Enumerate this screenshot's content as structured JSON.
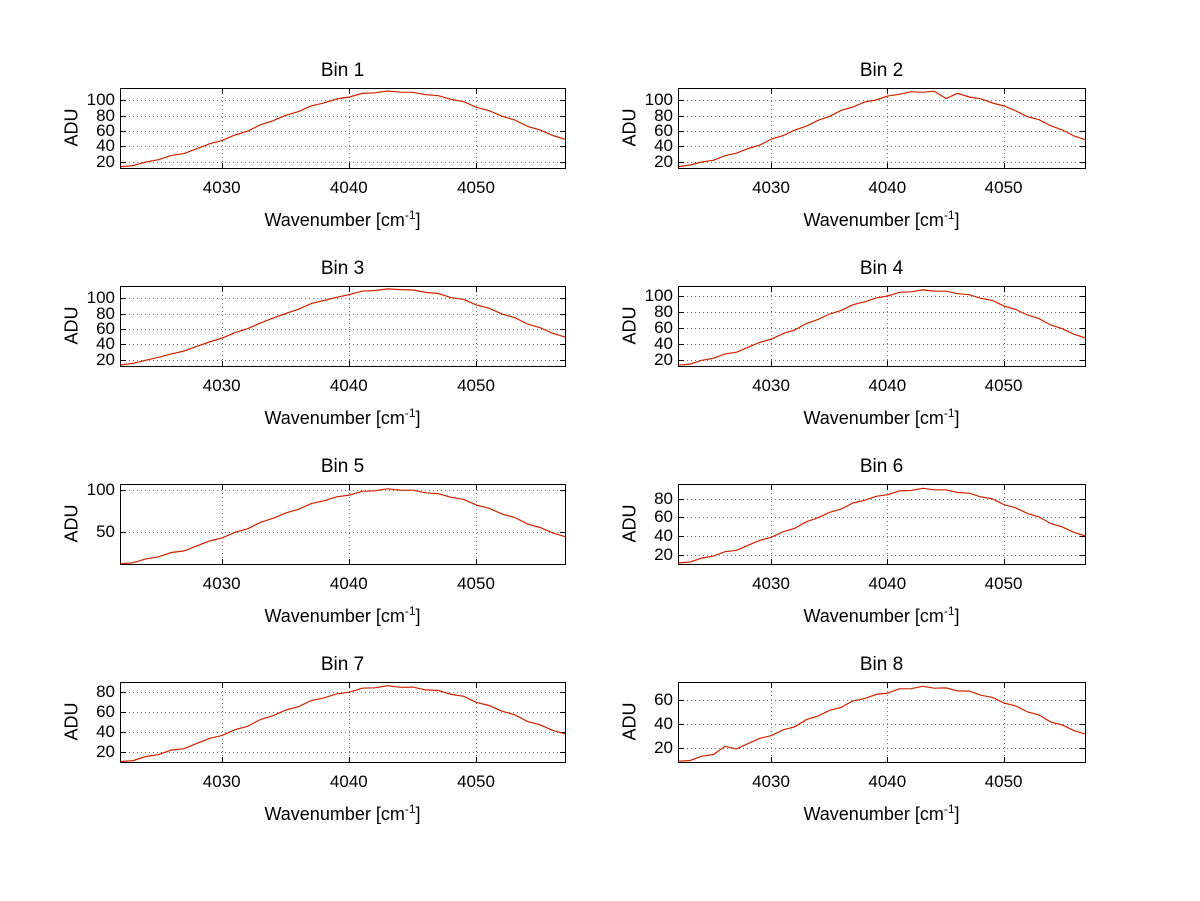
{
  "labels": {
    "ylabel": "ADU",
    "xlabel_main": "Wavenumber [cm",
    "xlabel_sup": "-1",
    "xlabel_close": "]"
  },
  "colors": {
    "line": "#cc2200",
    "grid": "#000000",
    "axis": "#000000",
    "background": "#ffffff"
  },
  "chart_data": [
    {
      "type": "line",
      "title": "Bin 1",
      "xlabel": "Wavenumber [cm^-1]",
      "ylabel": "ADU",
      "x_start": 4022,
      "x_step": 1,
      "xlim": [
        4022,
        4057
      ],
      "ylim": [
        12,
        116
      ],
      "xticks": [
        4030,
        4040,
        4050
      ],
      "xtick_labels": [
        "4030",
        "4040",
        "4050"
      ],
      "yticks": [
        20,
        40,
        60,
        80,
        100
      ],
      "ytick_labels": [
        "20",
        "40",
        "60",
        "80",
        "100"
      ],
      "grid": true,
      "values": [
        14.2,
        15.8,
        20.6,
        23.4,
        29.0,
        31.4,
        37.8,
        44.1,
        48.5,
        55.6,
        60.5,
        68.8,
        74.2,
        81.2,
        86.0,
        93.4,
        97.3,
        102.4,
        104.9,
        109.6,
        110.4,
        112.8,
        111.2,
        111.1,
        107.9,
        106.6,
        101.8,
        98.9,
        91.6,
        87.2,
        80.0,
        75.2,
        66.9,
        62.0,
        54.9,
        49.8
      ]
    },
    {
      "type": "line",
      "title": "Bin 2",
      "xlabel": "Wavenumber [cm^-1]",
      "ylabel": "ADU",
      "x_start": 4022,
      "x_step": 1,
      "xlim": [
        4022,
        4057
      ],
      "ylim": [
        12,
        116
      ],
      "xticks": [
        4030,
        4040,
        4050
      ],
      "xtick_labels": [
        "4030",
        "4040",
        "4050"
      ],
      "yticks": [
        20,
        40,
        60,
        80,
        100
      ],
      "ytick_labels": [
        "20",
        "40",
        "60",
        "80",
        "100"
      ],
      "grid": true,
      "values": [
        14.5,
        16.5,
        20.4,
        22.6,
        28.7,
        32.0,
        38.0,
        42.4,
        50.3,
        54.8,
        62.1,
        67.0,
        74.6,
        79.9,
        87.7,
        91.9,
        98.4,
        101.0,
        106.3,
        108.5,
        111.9,
        111.1,
        112.5,
        103.0,
        109.7,
        105.0,
        102.6,
        97.1,
        93.3,
        87.0,
        79.4,
        75.5,
        67.7,
        62.2,
        54.2,
        49.5
      ]
    },
    {
      "type": "line",
      "title": "Bin 3",
      "xlabel": "Wavenumber [cm^-1]",
      "ylabel": "ADU",
      "x_start": 4022,
      "x_step": 1,
      "xlim": [
        4022,
        4057
      ],
      "ylim": [
        12,
        116
      ],
      "xticks": [
        4030,
        4040,
        4050
      ],
      "xtick_labels": [
        "4030",
        "4040",
        "4050"
      ],
      "yticks": [
        20,
        40,
        60,
        80,
        100
      ],
      "ytick_labels": [
        "20",
        "40",
        "60",
        "80",
        "100"
      ],
      "grid": true,
      "values": [
        14.0,
        16.2,
        20.2,
        23.9,
        28.4,
        32.1,
        38.2,
        43.8,
        49.0,
        55.9,
        61.2,
        68.4,
        74.9,
        80.9,
        86.5,
        93.8,
        97.8,
        102.0,
        105.5,
        109.9,
        110.8,
        112.9,
        112.0,
        111.5,
        108.3,
        106.9,
        101.5,
        99.2,
        91.9,
        87.6,
        80.4,
        75.6,
        67.3,
        62.4,
        55.2,
        50.1
      ]
    },
    {
      "type": "line",
      "title": "Bin 4",
      "xlabel": "Wavenumber [cm^-1]",
      "ylabel": "ADU",
      "x_start": 4022,
      "x_step": 1,
      "xlim": [
        4022,
        4057
      ],
      "ylim": [
        12,
        112
      ],
      "xticks": [
        4030,
        4040,
        4050
      ],
      "xtick_labels": [
        "4030",
        "4040",
        "4050"
      ],
      "yticks": [
        20,
        40,
        60,
        80,
        100
      ],
      "ytick_labels": [
        "20",
        "40",
        "60",
        "80",
        "100"
      ],
      "grid": true,
      "values": [
        13.6,
        15.0,
        19.7,
        22.3,
        27.7,
        29.9,
        36.1,
        42.2,
        46.3,
        53.1,
        57.7,
        65.8,
        70.9,
        77.6,
        82.1,
        89.3,
        92.9,
        97.8,
        100.1,
        104.7,
        105.4,
        107.8,
        106.2,
        106.1,
        103.0,
        101.8,
        97.2,
        94.5,
        87.5,
        83.3,
        76.4,
        71.9,
        63.9,
        59.2,
        52.4,
        47.6
      ]
    },
    {
      "type": "line",
      "title": "Bin 5",
      "xlabel": "Wavenumber [cm^-1]",
      "ylabel": "ADU",
      "x_start": 4022,
      "x_step": 1,
      "xlim": [
        4022,
        4057
      ],
      "ylim": [
        12,
        107
      ],
      "xticks": [
        4030,
        4040,
        4050
      ],
      "xtick_labels": [
        "4030",
        "4040",
        "4050"
      ],
      "yticks": [
        50,
        100
      ],
      "ytick_labels": [
        "50",
        "100"
      ],
      "grid": true,
      "values": [
        12.8,
        14.1,
        18.7,
        21.1,
        26.3,
        28.2,
        34.1,
        39.9,
        43.6,
        50.2,
        54.4,
        62.1,
        66.9,
        73.3,
        77.5,
        84.3,
        87.7,
        92.4,
        94.4,
        98.9,
        99.5,
        101.9,
        100.3,
        100.2,
        97.2,
        96.1,
        91.8,
        89.3,
        82.5,
        78.7,
        72.1,
        67.9,
        60.2,
        55.9,
        49.5,
        44.9
      ]
    },
    {
      "type": "line",
      "title": "Bin 6",
      "xlabel": "Wavenumber [cm^-1]",
      "ylabel": "ADU",
      "x_start": 4022,
      "x_step": 1,
      "xlim": [
        4022,
        4057
      ],
      "ylim": [
        10,
        96
      ],
      "xticks": [
        4030,
        4040,
        4050
      ],
      "xtick_labels": [
        "4030",
        "4040",
        "4050"
      ],
      "yticks": [
        20,
        40,
        60,
        80
      ],
      "ytick_labels": [
        "20",
        "40",
        "60",
        "80"
      ],
      "grid": true,
      "values": [
        11.6,
        12.7,
        16.9,
        19.0,
        23.8,
        25.3,
        30.8,
        36.0,
        39.3,
        45.3,
        48.9,
        56.0,
        60.2,
        66.1,
        69.7,
        76.1,
        79.0,
        83.3,
        85.0,
        89.1,
        89.6,
        91.9,
        90.3,
        90.3,
        87.4,
        86.7,
        82.7,
        80.6,
        74.3,
        70.9,
        64.9,
        61.2,
        54.1,
        50.4,
        44.6,
        40.6
      ]
    },
    {
      "type": "line",
      "title": "Bin 7",
      "xlabel": "Wavenumber [cm^-1]",
      "ylabel": "ADU",
      "x_start": 4022,
      "x_step": 1,
      "xlim": [
        4022,
        4057
      ],
      "ylim": [
        10,
        90
      ],
      "xticks": [
        4030,
        4040,
        4050
      ],
      "xtick_labels": [
        "4030",
        "4040",
        "4050"
      ],
      "yticks": [
        20,
        40,
        60,
        80
      ],
      "ytick_labels": [
        "20",
        "40",
        "60",
        "80"
      ],
      "grid": true,
      "values": [
        11.0,
        11.9,
        16.0,
        17.9,
        22.5,
        23.8,
        29.1,
        34.1,
        37.1,
        42.8,
        46.2,
        53.0,
        56.8,
        62.5,
        65.8,
        71.9,
        74.6,
        78.7,
        80.3,
        84.3,
        84.7,
        86.8,
        85.2,
        85.4,
        82.6,
        82.0,
        78.1,
        76.2,
        70.1,
        67.0,
        61.3,
        57.8,
        51.1,
        47.7,
        42.1,
        38.4
      ]
    },
    {
      "type": "line",
      "title": "Bin 8",
      "xlabel": "Wavenumber [cm^-1]",
      "ylabel": "ADU",
      "x_start": 4022,
      "x_step": 1,
      "xlim": [
        4022,
        4057
      ],
      "ylim": [
        8,
        75
      ],
      "xticks": [
        4030,
        4040,
        4050
      ],
      "xtick_labels": [
        "4030",
        "4040",
        "4050"
      ],
      "yticks": [
        20,
        40,
        60
      ],
      "ytick_labels": [
        "20",
        "40",
        "60"
      ],
      "grid": true,
      "values": [
        9.1,
        9.7,
        13.3,
        14.7,
        21.5,
        19.4,
        24.0,
        28.3,
        30.5,
        35.4,
        37.9,
        43.9,
        46.9,
        51.7,
        54.2,
        59.6,
        61.5,
        65.0,
        66.1,
        69.7,
        69.8,
        71.8,
        70.2,
        70.5,
        68.0,
        67.8,
        64.4,
        62.5,
        57.8,
        55.4,
        50.5,
        47.9,
        42.0,
        39.4,
        34.7,
        31.8
      ]
    }
  ]
}
